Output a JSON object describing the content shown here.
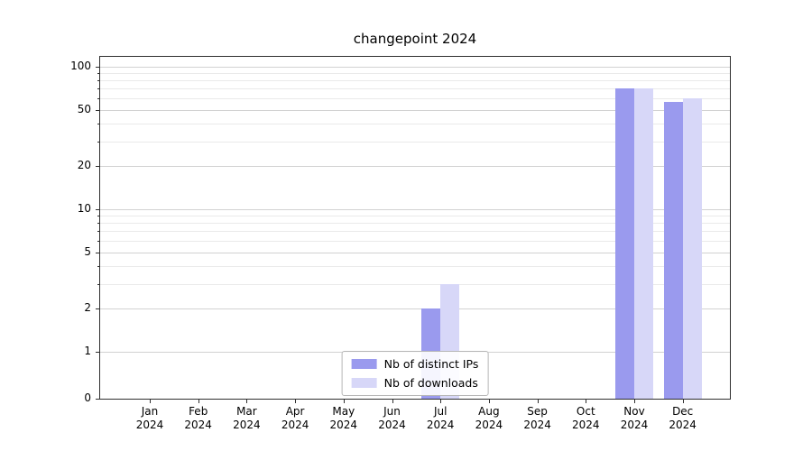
{
  "chart_data": {
    "type": "bar",
    "title": "changepoint 2024",
    "xlabel": "",
    "ylabel": "",
    "yscale": "symlog",
    "grid": true,
    "legend_position": "lower center",
    "ylim": [
      0,
      130
    ],
    "yticks": [
      0,
      1,
      2,
      5,
      10,
      20,
      50,
      100
    ],
    "categories": [
      "Jan 2024",
      "Feb 2024",
      "Mar 2024",
      "Apr 2024",
      "May 2024",
      "Jun 2024",
      "Jul 2024",
      "Aug 2024",
      "Sep 2024",
      "Oct 2024",
      "Nov 2024",
      "Dec 2024"
    ],
    "series": [
      {
        "name": "Nb of distinct IPs",
        "color": "#9a9aee",
        "values": [
          0,
          0,
          0,
          0,
          0,
          0,
          2,
          0,
          0,
          0,
          70,
          57
        ]
      },
      {
        "name": "Nb of downloads",
        "color": "#d7d7f8",
        "values": [
          0,
          0,
          0,
          0,
          0,
          0,
          3,
          0,
          0,
          0,
          70,
          60
        ]
      }
    ]
  }
}
